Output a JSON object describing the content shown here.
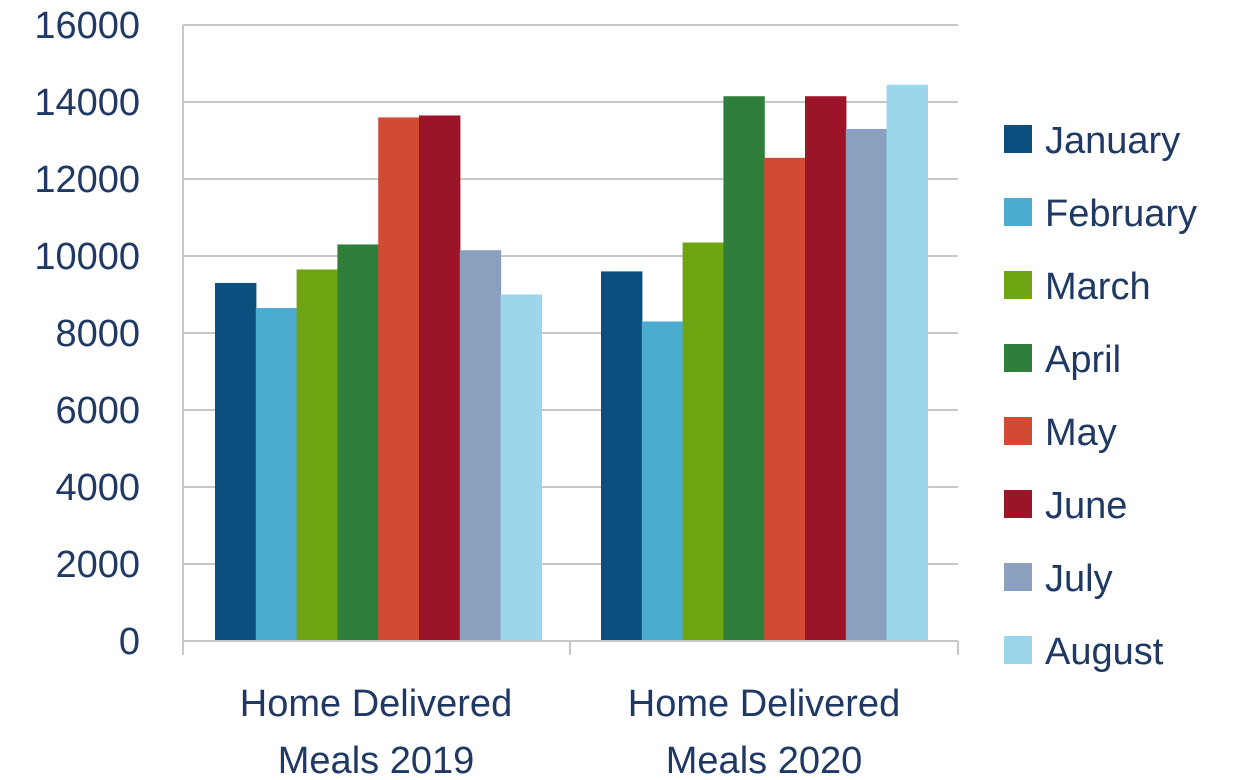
{
  "chart_data": {
    "type": "bar",
    "categories": [
      [
        "Home Delivered",
        "Meals 2019"
      ],
      [
        "Home Delivered",
        "Meals 2020"
      ]
    ],
    "series": [
      {
        "name": "January",
        "color": "#0a4f7e",
        "values": [
          9300,
          9600
        ]
      },
      {
        "name": "February",
        "color": "#4bacd0",
        "values": [
          8650,
          8300
        ]
      },
      {
        "name": "March",
        "color": "#6fa512",
        "values": [
          9650,
          10350
        ]
      },
      {
        "name": "April",
        "color": "#2f7f3a",
        "values": [
          10300,
          14150
        ]
      },
      {
        "name": "May",
        "color": "#d24a34",
        "values": [
          13600,
          12550
        ]
      },
      {
        "name": "June",
        "color": "#9c1427",
        "values": [
          13650,
          14150
        ]
      },
      {
        "name": "July",
        "color": "#8ba0bf",
        "values": [
          10150,
          13300
        ]
      },
      {
        "name": "August",
        "color": "#9bd6ec",
        "values": [
          9000,
          14450
        ]
      }
    ],
    "ylim": [
      0,
      16000
    ],
    "yticks": [
      "0",
      "2000",
      "4000",
      "6000",
      "8000",
      "10000",
      "12000",
      "14000",
      "16000"
    ],
    "grid": true,
    "legend": "right"
  }
}
